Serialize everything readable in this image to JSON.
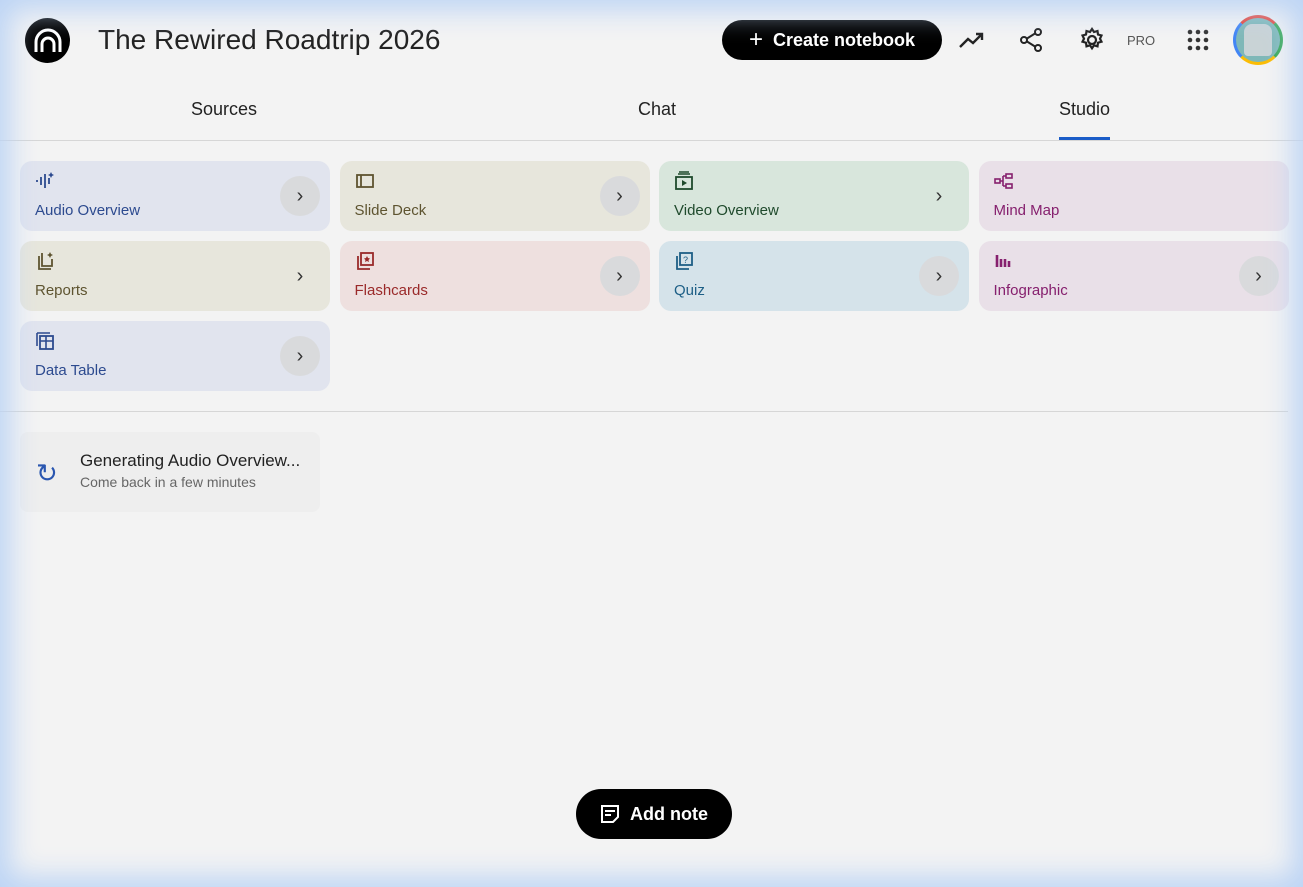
{
  "header": {
    "title": "The Rewired Roadtrip 2026",
    "create_label": "Create notebook",
    "pro_label": "PRO"
  },
  "tabs": [
    {
      "label": "Sources"
    },
    {
      "label": "Chat"
    },
    {
      "label": "Studio",
      "active": true
    }
  ],
  "studio": {
    "cards": [
      {
        "label": "Audio Overview",
        "icon": "audio-waveform-icon",
        "color": "#2c4a8f",
        "bg": "#e1e4ee"
      },
      {
        "label": "Slide Deck",
        "icon": "slides-icon",
        "color": "#5e5430",
        "bg": "#e7e6dc"
      },
      {
        "label": "Video Overview",
        "icon": "video-icon",
        "color": "#1f4a2c",
        "bg": "#d8e6dc"
      },
      {
        "label": "Mind Map",
        "icon": "mind-map-icon",
        "color": "#86206e",
        "bg": "#e9e0e8"
      },
      {
        "label": "Reports",
        "icon": "reports-icon",
        "color": "#5e5430",
        "bg": "#e7e6dc"
      },
      {
        "label": "Flashcards",
        "icon": "flashcards-icon",
        "color": "#9a2a2a",
        "bg": "#eee0df"
      },
      {
        "label": "Quiz",
        "icon": "quiz-icon",
        "color": "#1d5f86",
        "bg": "#d5e3ea"
      },
      {
        "label": "Infographic",
        "icon": "infographic-icon",
        "color": "#86206e",
        "bg": "#e9e0e8"
      },
      {
        "label": "Data Table",
        "icon": "table-icon",
        "color": "#2c4a8f",
        "bg": "#e1e4ee"
      }
    ]
  },
  "generating": {
    "title": "Generating Audio Overview...",
    "subtitle": "Come back in a few minutes"
  },
  "add_note_label": "Add note"
}
